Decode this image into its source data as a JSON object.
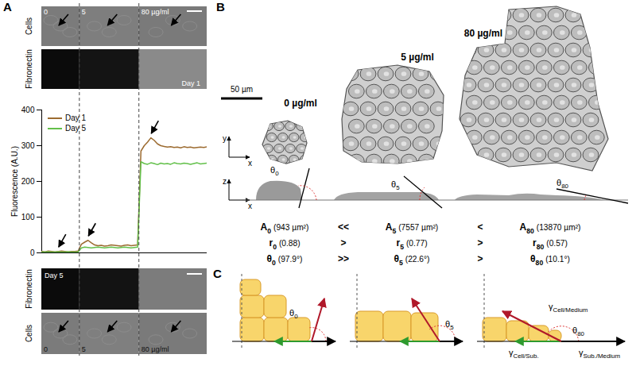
{
  "chart_data": {
    "type": "line",
    "ylabel": "Fluorescence (A.U.)",
    "xlim": [
      0,
      100
    ],
    "ylim": [
      0,
      400
    ],
    "yticks": [
      0,
      100,
      200,
      300,
      400
    ],
    "tick_labels": "y",
    "legend": "top-left",
    "x": [
      0,
      2,
      4,
      6,
      8,
      10,
      12,
      14,
      16,
      18,
      20,
      22,
      24,
      26,
      28,
      30,
      32,
      34,
      36,
      38,
      40,
      42,
      44,
      46,
      48,
      50,
      52,
      54,
      56,
      58,
      60,
      62,
      64,
      66,
      68,
      70,
      72,
      74,
      76,
      78,
      80,
      82,
      84,
      86,
      88,
      90,
      92,
      94,
      96,
      98,
      100
    ],
    "series": [
      {
        "name": "Day 1",
        "color": "#9c6b30",
        "values": [
          4,
          3,
          5,
          4,
          3,
          4,
          5,
          4,
          3,
          4,
          4,
          5,
          24,
          30,
          35,
          28,
          22,
          20,
          21,
          19,
          20,
          22,
          21,
          20,
          19,
          21,
          22,
          20,
          21,
          22,
          285,
          300,
          310,
          322,
          315,
          305,
          300,
          298,
          296,
          297,
          295,
          296,
          294,
          297,
          295,
          296,
          294,
          295,
          296,
          295,
          297
        ]
      },
      {
        "name": "Day 5",
        "color": "#63c04a",
        "values": [
          2,
          2,
          3,
          2,
          2,
          3,
          2,
          2,
          3,
          2,
          2,
          3,
          14,
          16,
          15,
          14,
          15,
          16,
          15,
          14,
          15,
          16,
          15,
          14,
          15,
          16,
          15,
          14,
          15,
          16,
          255,
          250,
          248,
          252,
          250,
          247,
          251,
          249,
          250,
          248,
          252,
          250,
          249,
          251,
          250,
          248,
          250,
          252,
          249,
          250,
          251
        ]
      }
    ]
  },
  "figure": {
    "panel_labels": [
      "A",
      "B",
      "C"
    ],
    "panel_a": {
      "boundaries": [
        23,
        59
      ],
      "concentrations": [
        "0",
        "5",
        "80 µg/ml"
      ],
      "cells_label": "Cells",
      "fibronectin_label": "Fibronectin",
      "day_labels": [
        "Day 1",
        "Day 5"
      ]
    },
    "panel_b": {
      "scale_bar": "50 µm",
      "conditions": [
        "0 µg/ml",
        "5 µg/ml",
        "80 µg/ml"
      ],
      "top_axes": [
        "x",
        "y"
      ],
      "side_axes": [
        "x",
        "z"
      ],
      "angle_symbol": "θ",
      "subs": [
        "0",
        "5",
        "80"
      ],
      "measures": [
        {
          "symbol": "A",
          "texts": [
            "(943 µm²)",
            "(7557 µm²)",
            "(13870 µm²)"
          ],
          "relations": [
            "<<",
            "<"
          ]
        },
        {
          "symbol": "r",
          "texts": [
            "(0.88)",
            "(0.77)",
            "(0.57)"
          ],
          "relations": [
            ">",
            ">"
          ]
        },
        {
          "symbol": "θ",
          "texts": [
            "(97.9°)",
            "(22.6°)",
            "(10.1°)"
          ],
          "relations": [
            ">>",
            ">"
          ]
        }
      ]
    },
    "panel_c": {
      "angle_symbol": "θ",
      "subs": [
        "0",
        "5",
        "80"
      ],
      "tension_symbol": "γ",
      "tensions": [
        "Cell/Medium",
        "Cell/Sub.",
        "Sub./Medium"
      ]
    }
  }
}
